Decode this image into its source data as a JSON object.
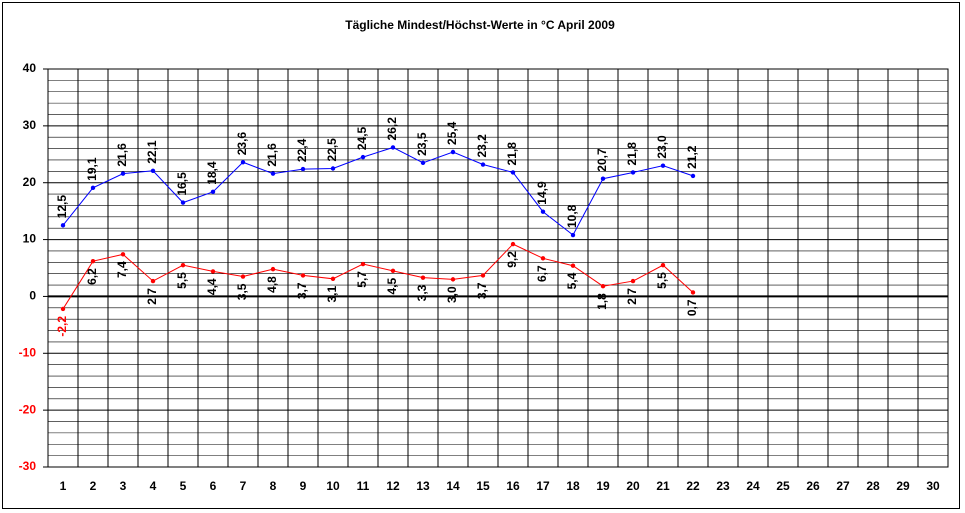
{
  "chart_data": {
    "type": "line",
    "title": "Tägliche Mindest/Höchst-Werte in °C April 2009",
    "categories": [
      "1",
      "2",
      "3",
      "4",
      "5",
      "6",
      "7",
      "8",
      "9",
      "10",
      "11",
      "12",
      "13",
      "14",
      "15",
      "16",
      "17",
      "18",
      "19",
      "20",
      "21",
      "22",
      "23",
      "24",
      "25",
      "26",
      "27",
      "28",
      "29",
      "30"
    ],
    "series": [
      {
        "name": "Höchst",
        "color": "#0000ff",
        "label_side": "above",
        "values": [
          12.5,
          19.1,
          21.6,
          22.1,
          16.5,
          18.4,
          23.6,
          21.6,
          22.4,
          22.5,
          24.5,
          26.2,
          23.5,
          25.4,
          23.2,
          21.8,
          14.9,
          10.8,
          20.7,
          21.8,
          23.0,
          21.2,
          null,
          null,
          null,
          null,
          null,
          null,
          null,
          null
        ],
        "value_labels": [
          "12,5",
          "19,1",
          "21,6",
          "22,1",
          "16,5",
          "18,4",
          "23,6",
          "21,6",
          "22,4",
          "22,5",
          "24,5",
          "26,2",
          "23,5",
          "25,4",
          "23,2",
          "21,8",
          "14,9",
          "10,8",
          "20,7",
          "21,8",
          "23,0",
          "21,2",
          null,
          null,
          null,
          null,
          null,
          null,
          null,
          null
        ]
      },
      {
        "name": "Mindest",
        "color": "#ff0000",
        "label_side": "below",
        "values": [
          -2.2,
          6.2,
          7.4,
          2.7,
          5.5,
          4.4,
          3.5,
          4.8,
          3.7,
          3.1,
          5.7,
          4.5,
          3.3,
          3.0,
          3.7,
          9.2,
          6.7,
          5.4,
          1.8,
          2.7,
          5.5,
          0.7,
          null,
          null,
          null,
          null,
          null,
          null,
          null,
          null
        ],
        "value_labels": [
          "-2,2",
          "6,2",
          "7,4",
          "2,7",
          "5,5",
          "4,4",
          "3,5",
          "4,8",
          "3,7",
          "3,1",
          "5,7",
          "4,5",
          "3,3",
          "3,0",
          "3,7",
          "9,2",
          "6,7",
          "5,4",
          "1,8",
          "2,7",
          "5,5",
          "0,7",
          null,
          null,
          null,
          null,
          null,
          null,
          null,
          null
        ]
      }
    ],
    "ylim": [
      -30,
      40
    ],
    "yticks": [
      -30,
      -20,
      -10,
      0,
      10,
      20,
      30,
      40
    ],
    "minor_yticks": [
      -28,
      -26,
      -24,
      -22,
      -18,
      -16,
      -14,
      -12,
      -8,
      -6,
      -4,
      -2,
      2,
      4,
      6,
      8,
      12,
      14,
      16,
      18,
      22,
      24,
      26,
      28,
      32,
      34,
      36,
      38
    ],
    "grid": true,
    "negative_color": "#ff0000"
  }
}
